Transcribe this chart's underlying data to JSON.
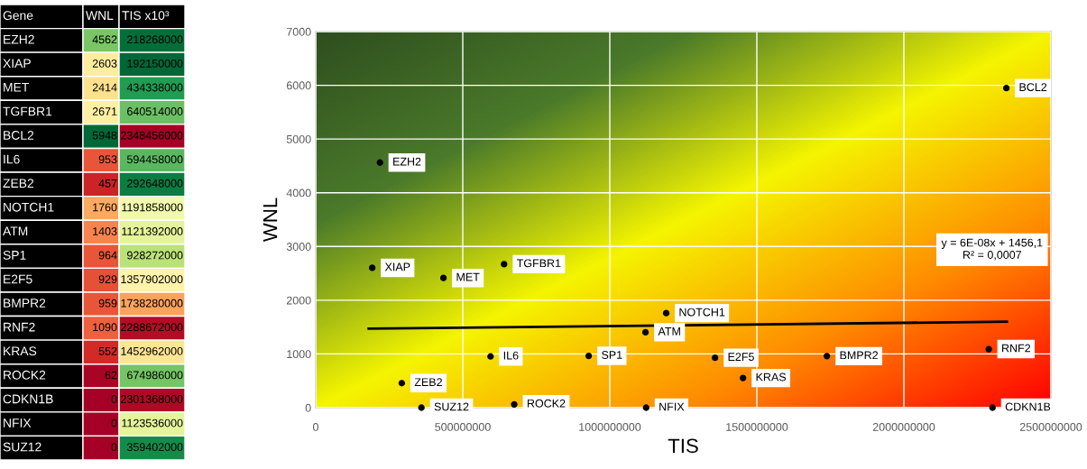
{
  "chart_data": [
    {
      "type": "heatmap",
      "ylabel": "Gene",
      "data_labels": true,
      "categories": [
        "WNL",
        "TIS x10³"
      ],
      "y_categories": [
        "EZH2",
        "XIAP",
        "MET",
        "TGFBR1",
        "BCL2",
        "IL6",
        "ZEB2",
        "NOTCH1",
        "ATM",
        "SP1",
        "E2F5",
        "BMPR2",
        "RNF2",
        "KRAS",
        "ROCK2",
        "CDKN1B",
        "NFIX",
        "SUZ12"
      ],
      "cells": [
        [
          4562,
          218268000
        ],
        [
          2603,
          192150000
        ],
        [
          2414,
          434338000
        ],
        [
          2671,
          640514000
        ],
        [
          5948,
          2348456000
        ],
        [
          953,
          594458000
        ],
        [
          457,
          292648000
        ],
        [
          1760,
          1191858000
        ],
        [
          1403,
          1121392000
        ],
        [
          964,
          928272000
        ],
        [
          929,
          1357902000
        ],
        [
          959,
          1738280000
        ],
        [
          1090,
          2288672000
        ],
        [
          552,
          1452962000
        ],
        [
          62,
          674986000
        ],
        [
          0,
          2301368000
        ],
        [
          0,
          1123536000
        ],
        [
          0,
          359402000
        ]
      ]
    },
    {
      "type": "scatter",
      "xlabel": "TIS",
      "ylabel": "WNL",
      "xlim": [
        0,
        2500000000
      ],
      "xticks": [
        0,
        500000000,
        1000000000,
        1500000000,
        2000000000,
        2500000000
      ],
      "ylim": [
        0,
        7000
      ],
      "yticks": [
        0,
        1000,
        2000,
        3000,
        4000,
        5000,
        6000,
        7000
      ],
      "grid": true,
      "series": [
        {
          "color": "#000000",
          "marker": "circle",
          "x": [
            218268000,
            192150000,
            434338000,
            640514000,
            2348456000,
            594458000,
            292648000,
            1191858000,
            1121392000,
            928272000,
            1357902000,
            1738280000,
            2288672000,
            1452962000,
            674986000,
            2301368000,
            1123536000,
            359402000
          ],
          "values": [
            4562,
            2603,
            2414,
            2671,
            5948,
            953,
            457,
            1760,
            1403,
            964,
            929,
            959,
            1090,
            552,
            62,
            0,
            0,
            0
          ]
        },
        {
          "type": "line",
          "color": "#000000",
          "x": [
            180000000,
            2350000000
          ],
          "values": [
            1470,
            1600
          ]
        }
      ],
      "annotations": [
        {
          "text": "EZH2",
          "x": 218268000,
          "y": 4562
        },
        {
          "text": "XIAP",
          "x": 192150000,
          "y": 2603
        },
        {
          "text": "MET",
          "x": 434338000,
          "y": 2414
        },
        {
          "text": "TGFBR1",
          "x": 640514000,
          "y": 2671
        },
        {
          "text": "BCL2",
          "x": 2348456000,
          "y": 5948
        },
        {
          "text": "IL6",
          "x": 594458000,
          "y": 953
        },
        {
          "text": "ZEB2",
          "x": 292648000,
          "y": 457
        },
        {
          "text": "NOTCH1",
          "x": 1191858000,
          "y": 1760
        },
        {
          "text": "ATM",
          "x": 1121392000,
          "y": 1403
        },
        {
          "text": "SP1",
          "x": 928272000,
          "y": 964
        },
        {
          "text": "E2F5",
          "x": 1357902000,
          "y": 929
        },
        {
          "text": "BMPR2",
          "x": 1738280000,
          "y": 959
        },
        {
          "text": "RNF2",
          "x": 2288672000,
          "y": 1090
        },
        {
          "text": "KRAS",
          "x": 1452962000,
          "y": 552
        },
        {
          "text": "ROCK2",
          "x": 674986000,
          "y": 62
        },
        {
          "text": "CDKN1B",
          "x": 2301368000,
          "y": 0
        },
        {
          "text": "NFIX",
          "x": 1123536000,
          "y": 0
        },
        {
          "text": "SUZ12",
          "x": 359402000,
          "y": 0
        },
        "y = 6E-08x + 1456,1\nR² = 0,0007"
      ]
    }
  ]
}
